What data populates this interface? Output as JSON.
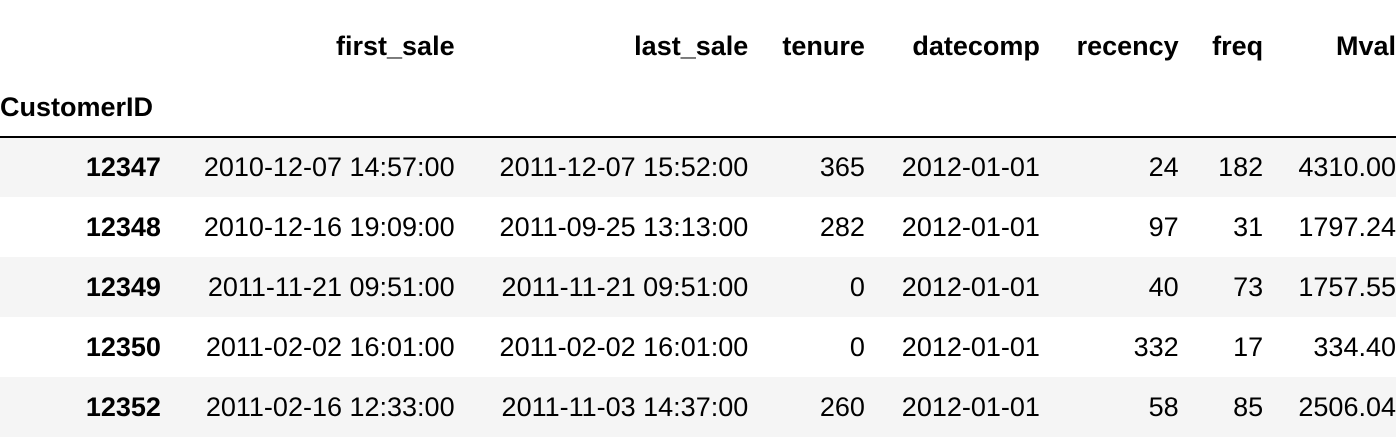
{
  "table": {
    "index_name": "CustomerID",
    "columns": [
      "first_sale",
      "last_sale",
      "tenure",
      "datecomp",
      "recency",
      "freq",
      "Mval"
    ],
    "rows": [
      {
        "index": "12347",
        "cells": [
          "2010-12-07 14:57:00",
          "2011-12-07 15:52:00",
          "365",
          "2012-01-01",
          "24",
          "182",
          "4310.00"
        ]
      },
      {
        "index": "12348",
        "cells": [
          "2010-12-16 19:09:00",
          "2011-09-25 13:13:00",
          "282",
          "2012-01-01",
          "97",
          "31",
          "1797.24"
        ]
      },
      {
        "index": "12349",
        "cells": [
          "2011-11-21 09:51:00",
          "2011-11-21 09:51:00",
          "0",
          "2012-01-01",
          "40",
          "73",
          "1757.55"
        ]
      },
      {
        "index": "12350",
        "cells": [
          "2011-02-02 16:01:00",
          "2011-02-02 16:01:00",
          "0",
          "2012-01-01",
          "332",
          "17",
          "334.40"
        ]
      },
      {
        "index": "12352",
        "cells": [
          "2011-02-16 12:33:00",
          "2011-11-03 14:37:00",
          "260",
          "2012-01-01",
          "58",
          "85",
          "2506.04"
        ]
      }
    ]
  },
  "colors": {
    "stripe": "#f5f5f5",
    "header_rule": "#000000",
    "text": "#000000"
  }
}
